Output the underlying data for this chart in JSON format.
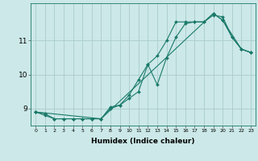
{
  "title": "",
  "xlabel": "Humidex (Indice chaleur)",
  "ylabel": "",
  "bg_color": "#cce8e8",
  "grid_color": "#aacccc",
  "line_color": "#1a7a6a",
  "series": [
    {
      "x": [
        0,
        1,
        2,
        3,
        4,
        5,
        6,
        7,
        8,
        9,
        10,
        11,
        12,
        13,
        14,
        15,
        16,
        17,
        18,
        19,
        20,
        21,
        22,
        23
      ],
      "y": [
        8.9,
        8.8,
        8.7,
        8.7,
        8.7,
        8.7,
        8.7,
        8.7,
        9.0,
        9.1,
        9.3,
        9.5,
        10.3,
        9.7,
        10.5,
        11.1,
        11.5,
        11.55,
        11.55,
        11.8,
        11.6,
        11.1,
        10.75,
        10.65
      ]
    },
    {
      "x": [
        0,
        1,
        2,
        3,
        4,
        5,
        6,
        7,
        8,
        9,
        10,
        11,
        12,
        13,
        14,
        15,
        16,
        17,
        18,
        19,
        20,
        21,
        22,
        23
      ],
      "y": [
        8.9,
        8.85,
        8.7,
        8.7,
        8.7,
        8.7,
        8.7,
        8.7,
        9.05,
        9.1,
        9.4,
        9.85,
        10.3,
        10.55,
        11.0,
        11.55,
        11.55,
        11.55,
        11.55,
        11.75,
        11.7,
        11.1,
        10.75,
        10.65
      ]
    },
    {
      "x": [
        0,
        7,
        19,
        20,
        22,
        23
      ],
      "y": [
        8.9,
        8.7,
        11.8,
        11.6,
        10.75,
        10.65
      ]
    }
  ],
  "yticks": [
    9,
    10,
    11
  ],
  "xticks": [
    0,
    1,
    2,
    3,
    4,
    5,
    6,
    7,
    8,
    9,
    10,
    11,
    12,
    13,
    14,
    15,
    16,
    17,
    18,
    19,
    20,
    21,
    22,
    23
  ],
  "xlim": [
    -0.5,
    23.5
  ],
  "ylim": [
    8.5,
    12.1
  ],
  "markersize": 2.0
}
